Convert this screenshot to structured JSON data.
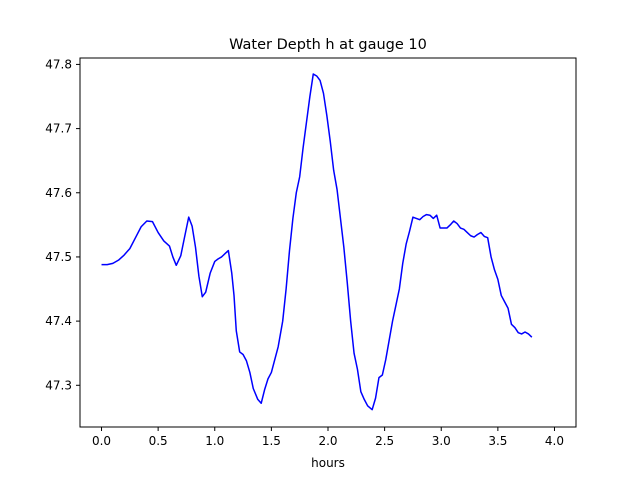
{
  "chart_data": {
    "type": "line",
    "title": "Water Depth h at gauge 10",
    "xlabel": "hours",
    "ylabel": "",
    "xlim": [
      -0.19,
      4.19
    ],
    "ylim": [
      47.235,
      47.81
    ],
    "grid": false,
    "xticks": [
      0.0,
      0.5,
      1.0,
      1.5,
      2.0,
      2.5,
      3.0,
      3.5,
      4.0
    ],
    "xtick_labels": [
      "0.0",
      "0.5",
      "1.0",
      "1.5",
      "2.0",
      "2.5",
      "3.0",
      "3.5",
      "4.0"
    ],
    "yticks": [
      47.3,
      47.4,
      47.5,
      47.6,
      47.7,
      47.8
    ],
    "ytick_labels": [
      "47.3",
      "47.4",
      "47.5",
      "47.6",
      "47.7",
      "47.8"
    ],
    "series": [
      {
        "color": "#0000ff",
        "points": [
          [
            0.0,
            47.488
          ],
          [
            0.05,
            47.488
          ],
          [
            0.1,
            47.49
          ],
          [
            0.15,
            47.495
          ],
          [
            0.2,
            47.503
          ],
          [
            0.25,
            47.513
          ],
          [
            0.3,
            47.53
          ],
          [
            0.35,
            47.547
          ],
          [
            0.4,
            47.556
          ],
          [
            0.45,
            47.555
          ],
          [
            0.5,
            47.538
          ],
          [
            0.55,
            47.525
          ],
          [
            0.6,
            47.517
          ],
          [
            0.63,
            47.5
          ],
          [
            0.66,
            47.487
          ],
          [
            0.7,
            47.502
          ],
          [
            0.73,
            47.528
          ],
          [
            0.77,
            47.562
          ],
          [
            0.8,
            47.548
          ],
          [
            0.83,
            47.515
          ],
          [
            0.86,
            47.47
          ],
          [
            0.89,
            47.438
          ],
          [
            0.92,
            47.445
          ],
          [
            0.96,
            47.475
          ],
          [
            1.0,
            47.493
          ],
          [
            1.03,
            47.497
          ],
          [
            1.06,
            47.5
          ],
          [
            1.09,
            47.505
          ],
          [
            1.12,
            47.51
          ],
          [
            1.15,
            47.475
          ],
          [
            1.17,
            47.44
          ],
          [
            1.19,
            47.385
          ],
          [
            1.22,
            47.352
          ],
          [
            1.25,
            47.348
          ],
          [
            1.28,
            47.338
          ],
          [
            1.31,
            47.32
          ],
          [
            1.34,
            47.295
          ],
          [
            1.38,
            47.278
          ],
          [
            1.41,
            47.272
          ],
          [
            1.44,
            47.293
          ],
          [
            1.47,
            47.31
          ],
          [
            1.5,
            47.32
          ],
          [
            1.53,
            47.34
          ],
          [
            1.56,
            47.36
          ],
          [
            1.6,
            47.4
          ],
          [
            1.63,
            47.45
          ],
          [
            1.66,
            47.51
          ],
          [
            1.69,
            47.56
          ],
          [
            1.72,
            47.6
          ],
          [
            1.75,
            47.625
          ],
          [
            1.78,
            47.67
          ],
          [
            1.81,
            47.71
          ],
          [
            1.84,
            47.75
          ],
          [
            1.87,
            47.785
          ],
          [
            1.9,
            47.782
          ],
          [
            1.93,
            47.775
          ],
          [
            1.96,
            47.755
          ],
          [
            1.99,
            47.72
          ],
          [
            2.02,
            47.68
          ],
          [
            2.05,
            47.635
          ],
          [
            2.08,
            47.605
          ],
          [
            2.11,
            47.56
          ],
          [
            2.14,
            47.515
          ],
          [
            2.17,
            47.46
          ],
          [
            2.2,
            47.4
          ],
          [
            2.23,
            47.35
          ],
          [
            2.26,
            47.325
          ],
          [
            2.29,
            47.29
          ],
          [
            2.32,
            47.278
          ],
          [
            2.35,
            47.268
          ],
          [
            2.39,
            47.262
          ],
          [
            2.42,
            47.28
          ],
          [
            2.45,
            47.312
          ],
          [
            2.48,
            47.316
          ],
          [
            2.51,
            47.34
          ],
          [
            2.54,
            47.37
          ],
          [
            2.57,
            47.4
          ],
          [
            2.6,
            47.425
          ],
          [
            2.63,
            47.45
          ],
          [
            2.66,
            47.49
          ],
          [
            2.69,
            47.52
          ],
          [
            2.72,
            47.54
          ],
          [
            2.75,
            47.562
          ],
          [
            2.78,
            47.56
          ],
          [
            2.81,
            47.558
          ],
          [
            2.84,
            47.563
          ],
          [
            2.87,
            47.566
          ],
          [
            2.9,
            47.565
          ],
          [
            2.93,
            47.56
          ],
          [
            2.96,
            47.565
          ],
          [
            2.99,
            47.545
          ],
          [
            3.02,
            47.545
          ],
          [
            3.05,
            47.545
          ],
          [
            3.08,
            47.55
          ],
          [
            3.11,
            47.556
          ],
          [
            3.14,
            47.552
          ],
          [
            3.17,
            47.545
          ],
          [
            3.2,
            47.543
          ],
          [
            3.23,
            47.538
          ],
          [
            3.26,
            47.533
          ],
          [
            3.29,
            47.531
          ],
          [
            3.32,
            47.535
          ],
          [
            3.35,
            47.538
          ],
          [
            3.38,
            47.532
          ],
          [
            3.41,
            47.53
          ],
          [
            3.44,
            47.5
          ],
          [
            3.47,
            47.48
          ],
          [
            3.5,
            47.465
          ],
          [
            3.53,
            47.44
          ],
          [
            3.56,
            47.43
          ],
          [
            3.59,
            47.42
          ],
          [
            3.62,
            47.395
          ],
          [
            3.65,
            47.39
          ],
          [
            3.68,
            47.382
          ],
          [
            3.71,
            47.38
          ],
          [
            3.74,
            47.383
          ],
          [
            3.77,
            47.38
          ],
          [
            3.8,
            47.375
          ]
        ]
      }
    ]
  }
}
